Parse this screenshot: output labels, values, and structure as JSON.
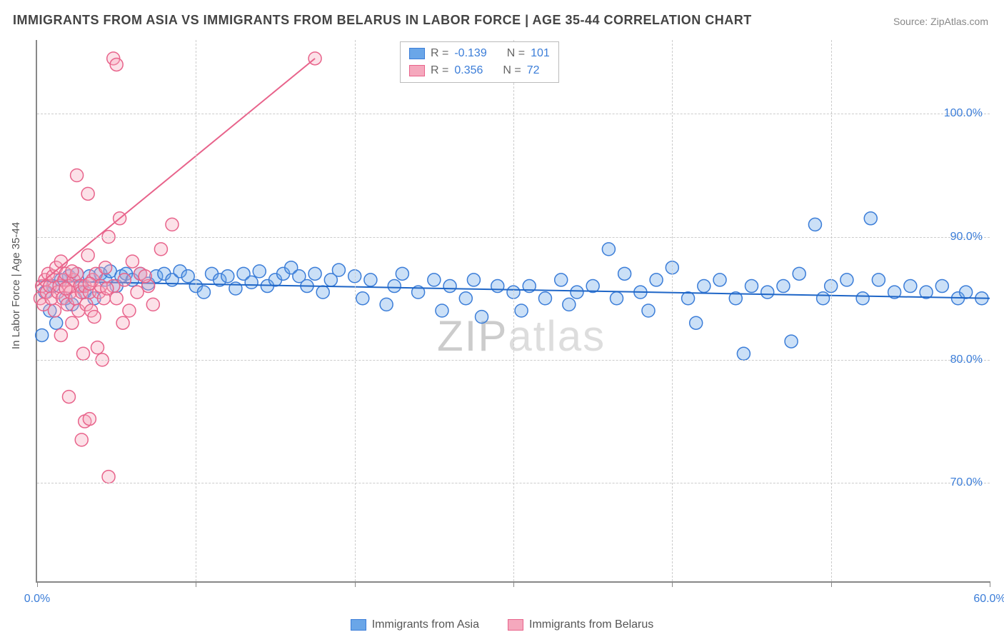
{
  "title": "IMMIGRANTS FROM ASIA VS IMMIGRANTS FROM BELARUS IN LABOR FORCE | AGE 35-44 CORRELATION CHART",
  "source": "Source: ZipAtlas.com",
  "ylabel": "In Labor Force | Age 35-44",
  "watermark": {
    "a": "ZIP",
    "b": "atlas"
  },
  "chart": {
    "type": "scatter-correlation",
    "background_color": "#ffffff",
    "grid_color": "#cccccc",
    "axis_color": "#888888",
    "xlim": [
      0,
      60
    ],
    "ylim": [
      62,
      106
    ],
    "xticks": [
      0,
      10,
      20,
      30,
      40,
      50,
      60
    ],
    "xtick_labels": [
      "0.0%",
      "",
      "",
      "",
      "",
      "",
      "60.0%"
    ],
    "xtick_label_color": "#3b7dd8",
    "yticks": [
      70,
      80,
      90,
      100
    ],
    "ytick_labels": [
      "70.0%",
      "80.0%",
      "90.0%",
      "100.0%"
    ],
    "ytick_label_color": "#3b7dd8",
    "marker_radius": 9,
    "marker_stroke_width": 1.5,
    "marker_fill_opacity": 0.35,
    "line_width": 2
  },
  "series": [
    {
      "id": "asia",
      "label": "Immigrants from Asia",
      "color": "#6aa6e8",
      "stroke": "#3b7dd8",
      "line_color": "#1f66c7",
      "R": "-0.139",
      "N": "101",
      "trend": {
        "x1": 0,
        "y1": 86.4,
        "x2": 60,
        "y2": 85.0
      },
      "points": [
        [
          0.3,
          82.0
        ],
        [
          0.5,
          85.5
        ],
        [
          0.8,
          84.0
        ],
        [
          1.0,
          86.0
        ],
        [
          1.2,
          83.0
        ],
        [
          1.5,
          86.5
        ],
        [
          1.8,
          85.0
        ],
        [
          2.0,
          86.8
        ],
        [
          2.2,
          84.5
        ],
        [
          2.5,
          87.0
        ],
        [
          2.8,
          86.0
        ],
        [
          3.0,
          85.5
        ],
        [
          3.3,
          86.8
        ],
        [
          3.6,
          85.0
        ],
        [
          4.0,
          87.0
        ],
        [
          4.3,
          86.5
        ],
        [
          4.6,
          87.2
        ],
        [
          5.0,
          86.0
        ],
        [
          5.3,
          86.8
        ],
        [
          5.6,
          87.0
        ],
        [
          6.0,
          86.5
        ],
        [
          6.5,
          87.0
        ],
        [
          7.0,
          86.2
        ],
        [
          7.5,
          86.8
        ],
        [
          8.0,
          87.0
        ],
        [
          8.5,
          86.5
        ],
        [
          9.0,
          87.2
        ],
        [
          9.5,
          86.8
        ],
        [
          10.0,
          86.0
        ],
        [
          10.5,
          85.5
        ],
        [
          11.0,
          87.0
        ],
        [
          11.5,
          86.5
        ],
        [
          12.0,
          86.8
        ],
        [
          12.5,
          85.8
        ],
        [
          13.0,
          87.0
        ],
        [
          13.5,
          86.3
        ],
        [
          14.0,
          87.2
        ],
        [
          14.5,
          86.0
        ],
        [
          15.0,
          86.5
        ],
        [
          15.5,
          87.0
        ],
        [
          16.0,
          87.5
        ],
        [
          16.5,
          86.8
        ],
        [
          17.0,
          86.0
        ],
        [
          17.5,
          87.0
        ],
        [
          18.0,
          85.5
        ],
        [
          18.5,
          86.5
        ],
        [
          19.0,
          87.3
        ],
        [
          20.0,
          86.8
        ],
        [
          20.5,
          85.0
        ],
        [
          21.0,
          86.5
        ],
        [
          22.0,
          84.5
        ],
        [
          22.5,
          86.0
        ],
        [
          23.0,
          87.0
        ],
        [
          24.0,
          85.5
        ],
        [
          25.0,
          86.5
        ],
        [
          25.5,
          84.0
        ],
        [
          26.0,
          86.0
        ],
        [
          27.0,
          85.0
        ],
        [
          27.5,
          86.5
        ],
        [
          28.0,
          83.5
        ],
        [
          29.0,
          86.0
        ],
        [
          30.0,
          85.5
        ],
        [
          30.5,
          84.0
        ],
        [
          31.0,
          86.0
        ],
        [
          32.0,
          85.0
        ],
        [
          33.0,
          86.5
        ],
        [
          33.5,
          84.5
        ],
        [
          34.0,
          85.5
        ],
        [
          35.0,
          86.0
        ],
        [
          36.0,
          89.0
        ],
        [
          36.5,
          85.0
        ],
        [
          37.0,
          87.0
        ],
        [
          38.0,
          85.5
        ],
        [
          38.5,
          84.0
        ],
        [
          39.0,
          86.5
        ],
        [
          40.0,
          87.5
        ],
        [
          41.0,
          85.0
        ],
        [
          41.5,
          83.0
        ],
        [
          42.0,
          86.0
        ],
        [
          43.0,
          86.5
        ],
        [
          44.0,
          85.0
        ],
        [
          44.5,
          80.5
        ],
        [
          45.0,
          86.0
        ],
        [
          46.0,
          85.5
        ],
        [
          47.0,
          86.0
        ],
        [
          47.5,
          81.5
        ],
        [
          48.0,
          87.0
        ],
        [
          49.0,
          91.0
        ],
        [
          49.5,
          85.0
        ],
        [
          50.0,
          86.0
        ],
        [
          51.0,
          86.5
        ],
        [
          52.0,
          85.0
        ],
        [
          52.5,
          91.5
        ],
        [
          53.0,
          86.5
        ],
        [
          54.0,
          85.5
        ],
        [
          55.0,
          86.0
        ],
        [
          56.0,
          85.5
        ],
        [
          57.0,
          86.0
        ],
        [
          58.0,
          85.0
        ],
        [
          58.5,
          85.5
        ],
        [
          59.5,
          85.0
        ]
      ]
    },
    {
      "id": "belarus",
      "label": "Immigrants from Belarus",
      "color": "#f5a8bd",
      "stroke": "#e8638b",
      "line_color": "#e8638b",
      "R": "0.356",
      "N": "72",
      "trend": {
        "x1": 0,
        "y1": 86.0,
        "x2": 17.5,
        "y2": 104.5
      },
      "points": [
        [
          0.2,
          85.0
        ],
        [
          0.3,
          86.0
        ],
        [
          0.4,
          84.5
        ],
        [
          0.5,
          86.5
        ],
        [
          0.6,
          85.5
        ],
        [
          0.7,
          87.0
        ],
        [
          0.8,
          86.0
        ],
        [
          0.9,
          85.0
        ],
        [
          1.0,
          86.8
        ],
        [
          1.1,
          84.0
        ],
        [
          1.2,
          87.5
        ],
        [
          1.3,
          85.5
        ],
        [
          1.4,
          86.0
        ],
        [
          1.5,
          88.0
        ],
        [
          1.6,
          85.0
        ],
        [
          1.7,
          86.5
        ],
        [
          1.8,
          87.0
        ],
        [
          1.9,
          84.5
        ],
        [
          2.0,
          86.0
        ],
        [
          2.1,
          85.5
        ],
        [
          2.2,
          83.0
        ],
        [
          2.3,
          86.5
        ],
        [
          2.4,
          85.0
        ],
        [
          2.5,
          87.0
        ],
        [
          2.6,
          84.0
        ],
        [
          2.7,
          86.0
        ],
        [
          2.8,
          85.5
        ],
        [
          2.9,
          80.5
        ],
        [
          3.0,
          86.0
        ],
        [
          3.1,
          84.5
        ],
        [
          3.2,
          88.5
        ],
        [
          3.3,
          85.5
        ],
        [
          3.4,
          84.0
        ],
        [
          3.5,
          86.5
        ],
        [
          3.6,
          83.5
        ],
        [
          3.7,
          87.0
        ],
        [
          3.8,
          81.0
        ],
        [
          3.9,
          85.5
        ],
        [
          4.0,
          86.0
        ],
        [
          4.1,
          80.0
        ],
        [
          4.2,
          85.0
        ],
        [
          4.3,
          87.5
        ],
        [
          4.5,
          90.0
        ],
        [
          4.8,
          86.0
        ],
        [
          5.0,
          85.0
        ],
        [
          5.2,
          91.5
        ],
        [
          5.5,
          86.5
        ],
        [
          5.8,
          84.0
        ],
        [
          6.0,
          88.0
        ],
        [
          6.3,
          85.5
        ],
        [
          6.5,
          87.0
        ],
        [
          7.0,
          86.0
        ],
        [
          7.3,
          84.5
        ],
        [
          7.8,
          89.0
        ],
        [
          2.5,
          95.0
        ],
        [
          3.2,
          93.5
        ],
        [
          4.8,
          104.5
        ],
        [
          5.0,
          104.0
        ],
        [
          2.0,
          77.0
        ],
        [
          3.0,
          75.0
        ],
        [
          3.3,
          75.2
        ],
        [
          2.8,
          73.5
        ],
        [
          4.5,
          70.5
        ],
        [
          1.5,
          82.0
        ],
        [
          8.5,
          91.0
        ],
        [
          17.5,
          104.5
        ],
        [
          6.8,
          86.8
        ],
        [
          5.4,
          83.0
        ],
        [
          4.4,
          85.8
        ],
        [
          3.3,
          86.2
        ],
        [
          2.2,
          87.2
        ],
        [
          1.8,
          85.8
        ]
      ]
    }
  ],
  "legend_top_labels": {
    "R": "R =",
    "N": "N ="
  },
  "legend_bottom": [
    {
      "series": 0
    },
    {
      "series": 1
    }
  ]
}
